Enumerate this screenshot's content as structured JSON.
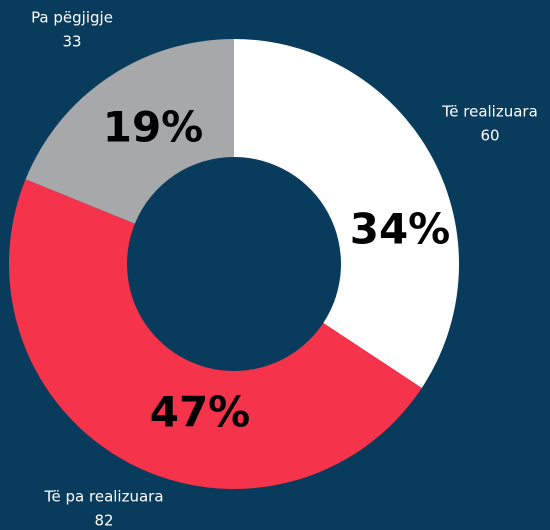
{
  "chart_data": {
    "type": "donut",
    "categories": [
      "Të realizuara",
      "Të pa realizuara",
      "Pa pëgjigje"
    ],
    "values": [
      60,
      82,
      33
    ],
    "percentages": [
      {
        "value": 34,
        "label": "34%"
      },
      {
        "value": 47,
        "label": "47%"
      },
      {
        "value": 19,
        "label": "19%"
      }
    ],
    "colors": [
      "#ffffff",
      "#f5334a",
      "#a7a8aa"
    ]
  }
}
